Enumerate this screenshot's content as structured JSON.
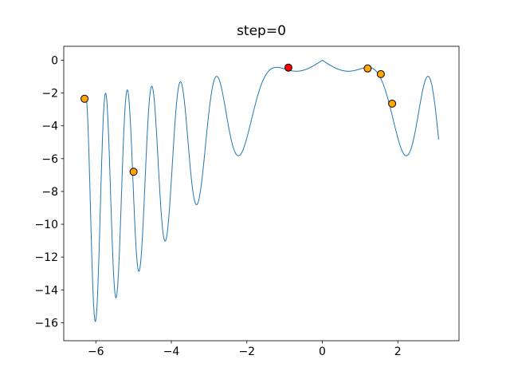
{
  "figure": {
    "background": "#ffffff"
  },
  "chart_data": {
    "type": "line",
    "title": "step=0",
    "xlabel": "",
    "ylabel": "",
    "grid": false,
    "legend": null,
    "xlim": [
      -6.85,
      3.62
    ],
    "ylim": [
      -17.1,
      0.85
    ],
    "xticks": [
      -6,
      -4,
      -2,
      0,
      2
    ],
    "xtick_labels": [
      "−6",
      "−4",
      "−2",
      "0",
      "2"
    ],
    "yticks": [
      0,
      -2,
      -4,
      -6,
      -8,
      -10,
      -12,
      -14,
      -16
    ],
    "ytick_labels": [
      "0",
      "−2",
      "−4",
      "−6",
      "−8",
      "−10",
      "−12",
      "−14",
      "−16"
    ],
    "line": {
      "color": "#1f77b4",
      "width": 1,
      "function": "y = -|x| * (a - b*sin(x^2))",
      "params": {
        "a": 1.5,
        "b": 1.15
      },
      "domain": [
        -6.27,
        3.08
      ],
      "samples": 2000,
      "notable_extrema": [
        {
          "x": -6.01,
          "y": -15.9
        },
        {
          "x": -5.46,
          "y": -14.5
        },
        {
          "x": -4.85,
          "y": -12.9
        },
        {
          "x": -4.16,
          "y": -11.0
        },
        {
          "x": -3.32,
          "y": -8.8
        },
        {
          "x": -2.17,
          "y": -5.9
        },
        {
          "x": 0.0,
          "y": 0.0
        },
        {
          "x": 2.17,
          "y": -5.9
        }
      ]
    },
    "scatter": [
      {
        "name": "orange-sample-point",
        "color": "#ffa500",
        "edge": "#000000",
        "size": 4.5,
        "points": [
          [
            -6.3,
            -2.35
          ],
          [
            -5.0,
            -6.8
          ],
          [
            1.2,
            -0.5
          ],
          [
            1.55,
            -0.85
          ],
          [
            1.85,
            -2.65
          ]
        ]
      },
      {
        "name": "red-current-point",
        "color": "#ff0000",
        "edge": "#000000",
        "size": 4.5,
        "points": [
          [
            -0.9,
            -0.45
          ]
        ]
      }
    ]
  }
}
